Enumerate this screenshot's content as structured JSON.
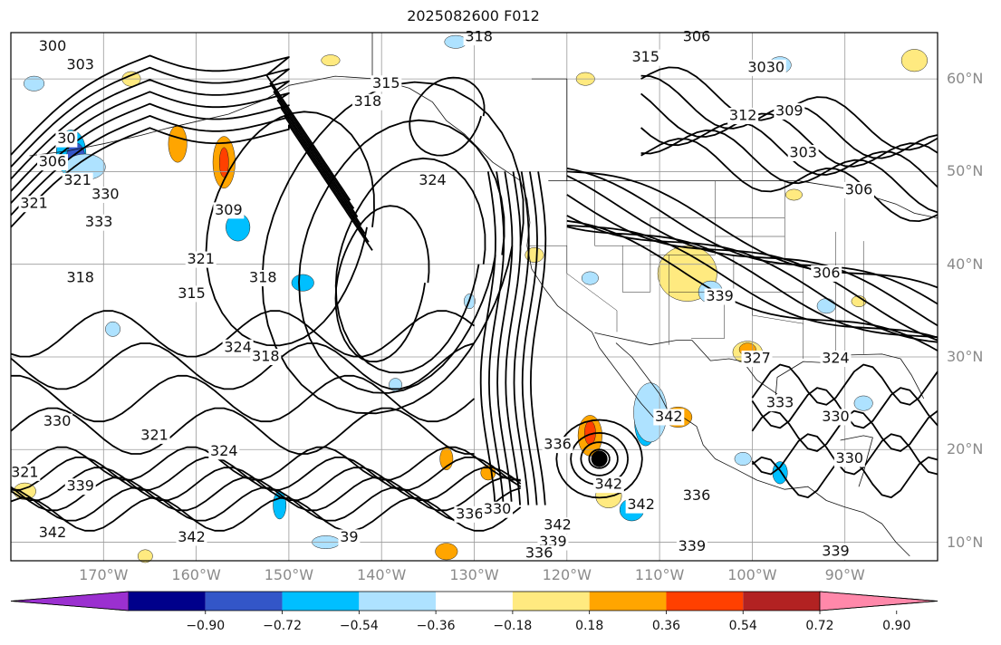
{
  "title": "2025082600 F012",
  "lat_labels": [
    {
      "text": "60°N",
      "value": 60
    },
    {
      "text": "50°N",
      "value": 50
    },
    {
      "text": "40°N",
      "value": 40
    },
    {
      "text": "30°N",
      "value": 30
    },
    {
      "text": "20°N",
      "value": 20
    },
    {
      "text": "10°N",
      "value": 10
    }
  ],
  "lon_labels": [
    {
      "text": "170°W",
      "value": -170
    },
    {
      "text": "160°W",
      "value": -160
    },
    {
      "text": "150°W",
      "value": -150
    },
    {
      "text": "140°W",
      "value": -140
    },
    {
      "text": "130°W",
      "value": -130
    },
    {
      "text": "120°W",
      "value": -120
    },
    {
      "text": "110°W",
      "value": -110
    },
    {
      "text": "100°W",
      "value": -100
    },
    {
      "text": "90°W",
      "value": -90
    }
  ],
  "colorbar": {
    "levels": [
      "−0.90",
      "−0.72",
      "−0.54",
      "−0.36",
      "−0.18",
      "0.18",
      "0.36",
      "0.54",
      "0.72",
      "0.90"
    ],
    "colors": [
      "#9b30d0",
      "#00008b",
      "#3356c8",
      "#00bfff",
      "#aee2ff",
      "#ffffff",
      "#ffea80",
      "#ffa500",
      "#ff4000",
      "#b22222",
      "#ff88aa"
    ]
  },
  "contour_labels": [
    "300",
    "303",
    "306",
    "309",
    "312",
    "315",
    "318",
    "321",
    "324",
    "327",
    "330",
    "333",
    "336",
    "339",
    "342",
    "3030",
    "330",
    "342",
    "339",
    "336"
  ],
  "contour_label_items": [
    {
      "text": "300",
      "lon": -175.5,
      "lat": 63.5
    },
    {
      "text": "303",
      "lon": -172.5,
      "lat": 61.5
    },
    {
      "text": "306",
      "lon": -175.5,
      "lat": 51.0
    },
    {
      "text": "321",
      "lon": -177.5,
      "lat": 46.5
    },
    {
      "text": "330",
      "lon": -169.8,
      "lat": 47.5
    },
    {
      "text": "321",
      "lon": -172.8,
      "lat": 49.0
    },
    {
      "text": "333",
      "lon": -170.5,
      "lat": 44.5
    },
    {
      "text": "318",
      "lon": -172.5,
      "lat": 38.5
    },
    {
      "text": "309",
      "lon": -156.5,
      "lat": 45.8
    },
    {
      "text": "321",
      "lon": -159.5,
      "lat": 40.5
    },
    {
      "text": "315",
      "lon": -160.5,
      "lat": 36.8
    },
    {
      "text": "318",
      "lon": -152.8,
      "lat": 38.5
    },
    {
      "text": "315",
      "lon": -139.5,
      "lat": 59.5
    },
    {
      "text": "318",
      "lon": -141.5,
      "lat": 57.5
    },
    {
      "text": "324",
      "lon": -134.5,
      "lat": 49.0
    },
    {
      "text": "318",
      "lon": -129.5,
      "lat": 64.5
    },
    {
      "text": "306",
      "lon": -106.0,
      "lat": 64.5
    },
    {
      "text": "315",
      "lon": -111.5,
      "lat": 62.3
    },
    {
      "text": "3030",
      "lon": -98.5,
      "lat": 61.2
    },
    {
      "text": "312",
      "lon": -101.0,
      "lat": 56.0
    },
    {
      "text": "309",
      "lon": -96.0,
      "lat": 56.5
    },
    {
      "text": "303",
      "lon": -94.5,
      "lat": 52.0
    },
    {
      "text": "306",
      "lon": -88.5,
      "lat": 48.0
    },
    {
      "text": "306",
      "lon": -92.0,
      "lat": 39.0
    },
    {
      "text": "339",
      "lon": -103.5,
      "lat": 36.5
    },
    {
      "text": "327",
      "lon": -99.5,
      "lat": 29.8
    },
    {
      "text": "324",
      "lon": -91.0,
      "lat": 29.8
    },
    {
      "text": "333",
      "lon": -97.0,
      "lat": 25.0
    },
    {
      "text": "330",
      "lon": -91.0,
      "lat": 23.5
    },
    {
      "text": "330",
      "lon": -89.5,
      "lat": 19.0
    },
    {
      "text": "339",
      "lon": -91.0,
      "lat": 9.0
    },
    {
      "text": "342",
      "lon": -109.0,
      "lat": 23.5
    },
    {
      "text": "336",
      "lon": -106.0,
      "lat": 15.0
    },
    {
      "text": "339",
      "lon": -106.5,
      "lat": 9.5
    },
    {
      "text": "342",
      "lon": -115.5,
      "lat": 16.2
    },
    {
      "text": "342",
      "lon": -112.0,
      "lat": 14.0
    },
    {
      "text": "336",
      "lon": -121.0,
      "lat": 20.5
    },
    {
      "text": "342",
      "lon": -121.0,
      "lat": 11.8
    },
    {
      "text": "339",
      "lon": -121.5,
      "lat": 10.0
    },
    {
      "text": "336",
      "lon": -123.0,
      "lat": 8.8
    },
    {
      "text": "336",
      "lon": -130.5,
      "lat": 13.0
    },
    {
      "text": "330",
      "lon": -127.5,
      "lat": 13.5
    },
    {
      "text": "39",
      "lon": -143.5,
      "lat": 10.5
    },
    {
      "text": "324",
      "lon": -155.5,
      "lat": 31.0
    },
    {
      "text": "318",
      "lon": -152.5,
      "lat": 30.0
    },
    {
      "text": "321",
      "lon": -164.5,
      "lat": 21.5
    },
    {
      "text": "324",
      "lon": -157.0,
      "lat": 19.8
    },
    {
      "text": "342",
      "lon": -160.5,
      "lat": 10.5
    },
    {
      "text": "342",
      "lon": -175.5,
      "lat": 11.0
    },
    {
      "text": "339",
      "lon": -172.5,
      "lat": 16.0
    },
    {
      "text": "321",
      "lon": -178.5,
      "lat": 17.5
    },
    {
      "text": "330",
      "lon": -175.0,
      "lat": 23.0
    },
    {
      "text": "30",
      "lon": -174.0,
      "lat": 53.5
    }
  ],
  "chart_data": {
    "type": "map",
    "lon_range": [
      -180,
      -80
    ],
    "lat_range": [
      8,
      65
    ],
    "grid": true,
    "contour_field_levels": [
      300,
      303,
      306,
      309,
      312,
      315,
      318,
      321,
      324,
      327,
      330,
      333,
      336,
      339,
      342
    ],
    "shaded_levels": [
      -0.9,
      -0.72,
      -0.54,
      -0.36,
      -0.18,
      0.18,
      0.36,
      0.54,
      0.72,
      0.9
    ],
    "marker": {
      "lon": -116.5,
      "lat": 19.0,
      "symbol": "filled-circle"
    }
  }
}
